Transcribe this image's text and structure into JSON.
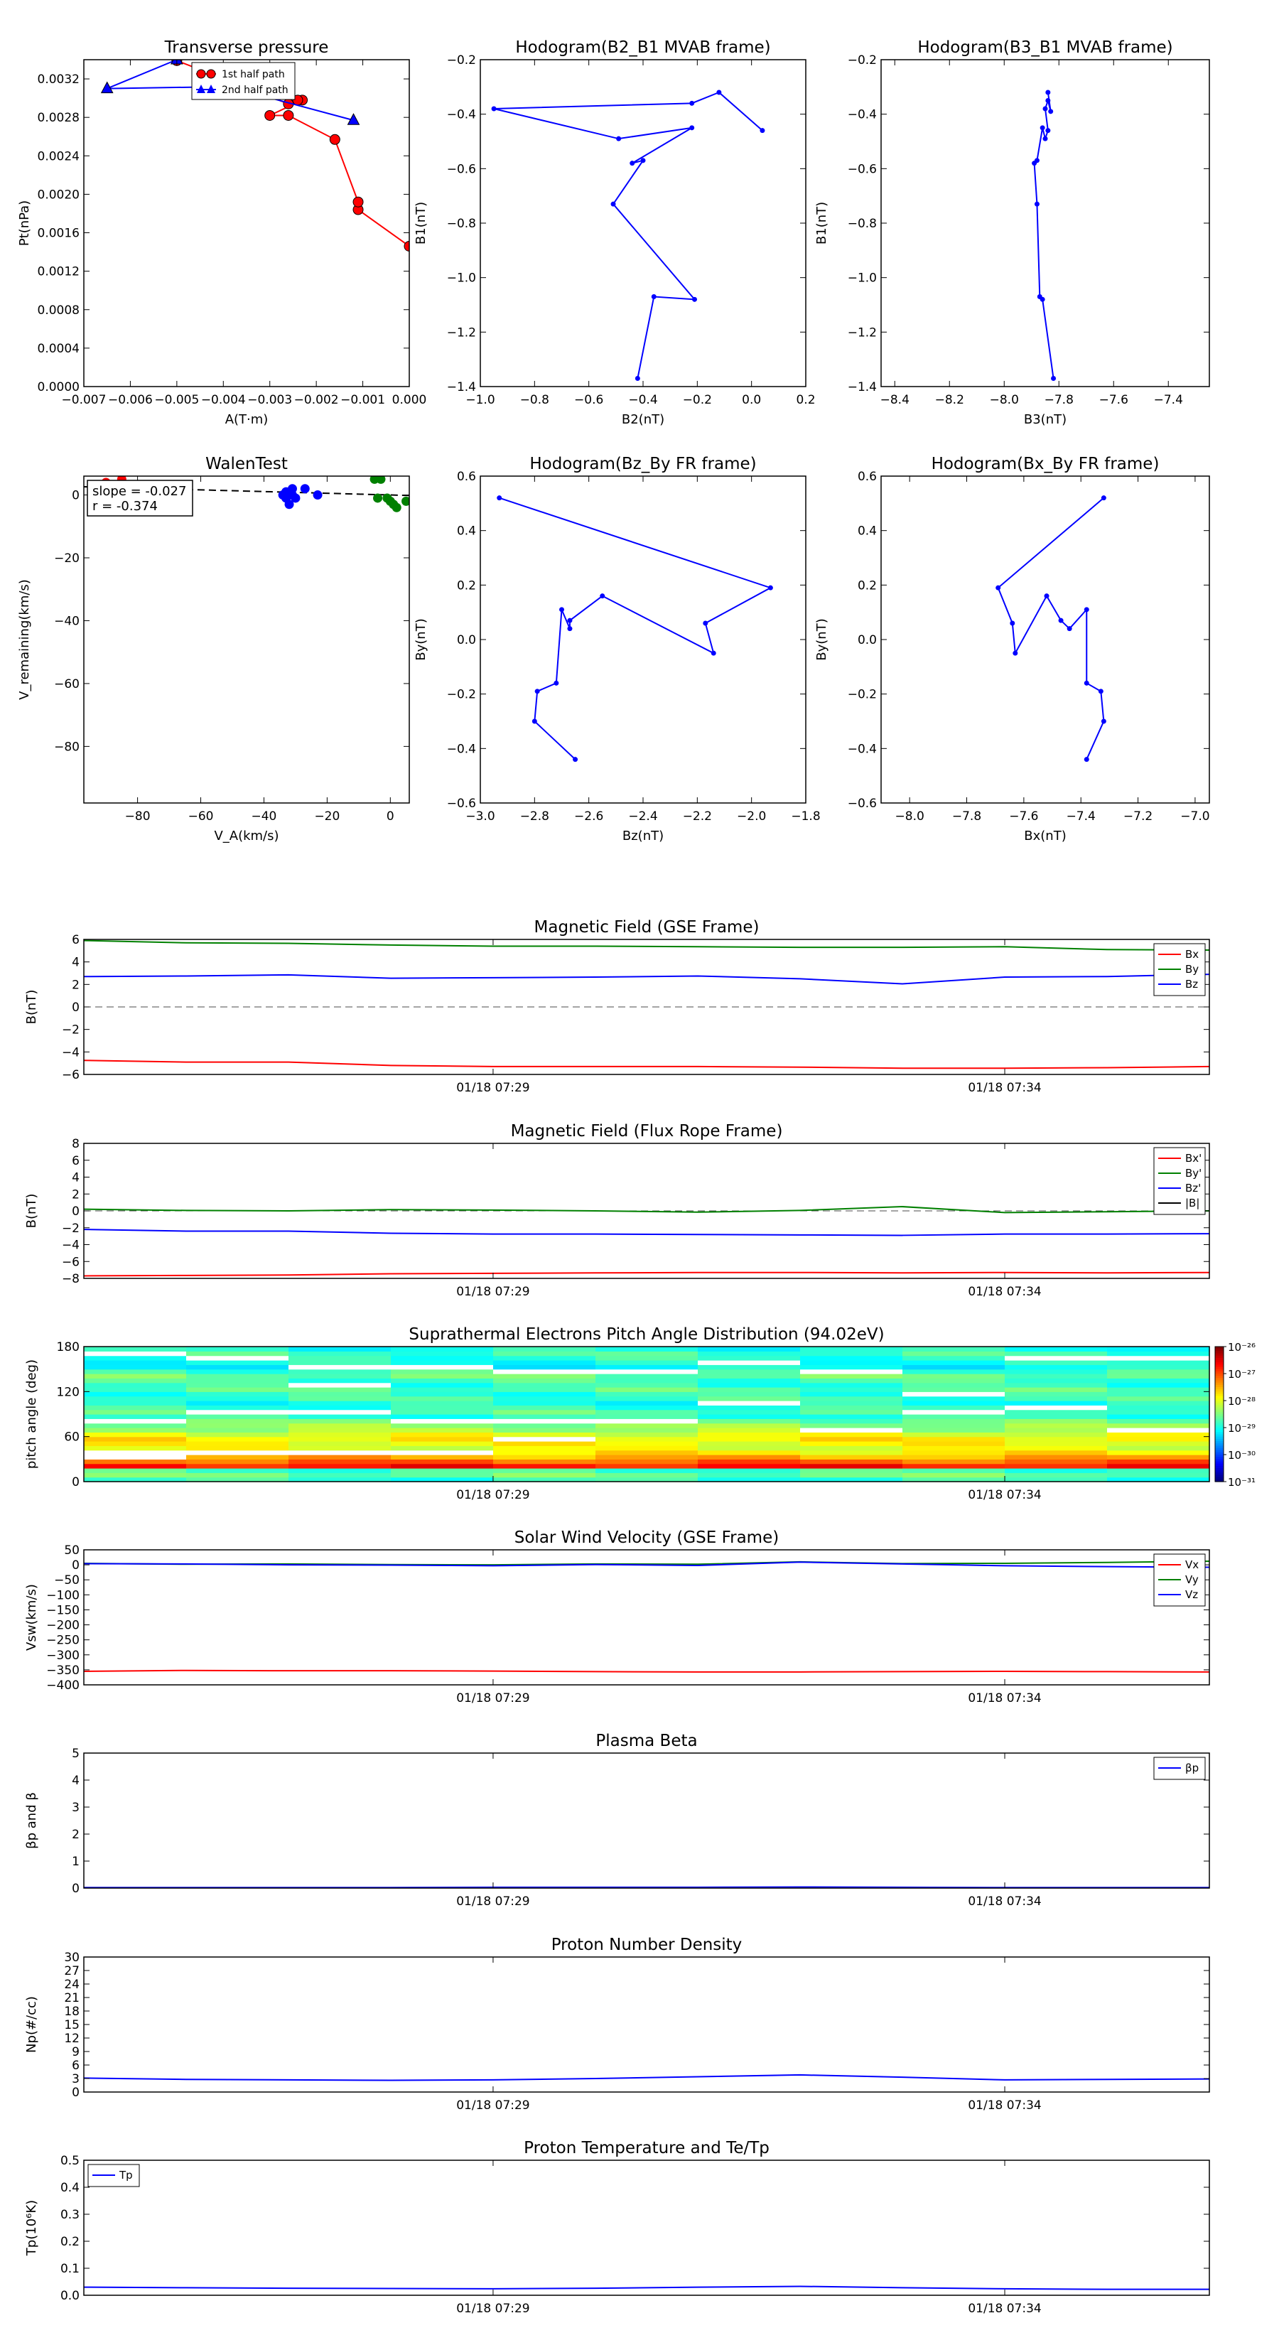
{
  "chart_data": [
    {
      "id": "tp",
      "type": "scatter",
      "title": "Transverse pressure",
      "xlabel": "A(T·m)",
      "ylabel": "Pt(nPa)",
      "xlim": [
        -0.007,
        0.0
      ],
      "ylim": [
        0.0,
        0.0034
      ],
      "xticks": [
        "−0.007",
        "−0.006",
        "−0.005",
        "−0.004",
        "−0.003",
        "−0.002",
        "−0.001",
        "0.000"
      ],
      "yticks": [
        "0.0000",
        "0.0004",
        "0.0008",
        "0.0012",
        "0.0016",
        "0.0020",
        "0.0024",
        "0.0028",
        "0.0032"
      ],
      "legend": "top-center",
      "series": [
        {
          "name": "1st half path",
          "color": "#ff0000",
          "marker": "circle",
          "x": [
            0.0,
            -0.0011,
            -0.0011,
            -0.0016,
            -0.0026,
            -0.003,
            -0.0023,
            -0.0024,
            -0.0026,
            -0.005
          ],
          "y": [
            0.00146,
            0.00184,
            0.00192,
            0.00257,
            0.00282,
            0.00282,
            0.00298,
            0.00298,
            0.00294,
            0.00339
          ]
        },
        {
          "name": "2nd half path",
          "color": "#0000ff",
          "marker": "triangle",
          "x": [
            -0.0012,
            -0.0039,
            -0.0065,
            -0.005
          ],
          "y": [
            0.00277,
            0.00312,
            0.0031,
            0.0034
          ]
        }
      ]
    },
    {
      "id": "h21",
      "type": "line",
      "title": "Hodogram(B2_B1 MVAB frame)",
      "xlabel": "B2(nT)",
      "ylabel": "B1(nT)",
      "xlim": [
        -1.0,
        0.2
      ],
      "ylim": [
        -1.4,
        -0.2
      ],
      "xticks": [
        "−1.0",
        "−0.8",
        "−0.6",
        "−0.4",
        "−0.2",
        "0.0",
        "0.2"
      ],
      "yticks": [
        "−1.4",
        "−1.2",
        "−1.0",
        "−0.8",
        "−0.6",
        "−0.4",
        "−0.2"
      ],
      "series": [
        {
          "color": "#0000ff",
          "x": [
            -0.42,
            -0.36,
            -0.21,
            -0.51,
            -0.4,
            -0.44,
            -0.22,
            -0.49,
            -0.95,
            -0.22,
            -0.12,
            0.04
          ],
          "y": [
            -1.37,
            -1.07,
            -1.08,
            -0.73,
            -0.57,
            -0.58,
            -0.45,
            -0.49,
            -0.38,
            -0.36,
            -0.32,
            -0.46
          ]
        }
      ]
    },
    {
      "id": "h31",
      "type": "line",
      "title": "Hodogram(B3_B1 MVAB frame)",
      "xlabel": "B3(nT)",
      "ylabel": "B1(nT)",
      "xlim": [
        -8.45,
        -7.25
      ],
      "ylim": [
        -1.4,
        -0.2
      ],
      "xticks": [
        "−8.4",
        "−8.2",
        "−8.0",
        "−7.8",
        "−7.6",
        "−7.4"
      ],
      "xtick_values": [
        -8.4,
        -8.2,
        -8.0,
        -7.8,
        -7.6,
        -7.4
      ],
      "yticks": [
        "−1.4",
        "−1.2",
        "−1.0",
        "−0.8",
        "−0.6",
        "−0.4",
        "−0.2"
      ],
      "series": [
        {
          "color": "#0000ff",
          "x": [
            -7.82,
            -7.86,
            -7.87,
            -7.88,
            -7.89,
            -7.88,
            -7.86,
            -7.85,
            -7.84,
            -7.85,
            -7.84,
            -7.83,
            -7.84
          ],
          "y": [
            -1.37,
            -1.08,
            -1.07,
            -0.73,
            -0.58,
            -0.57,
            -0.45,
            -0.49,
            -0.46,
            -0.38,
            -0.35,
            -0.39,
            -0.32
          ]
        }
      ]
    },
    {
      "id": "walen",
      "type": "scatter",
      "title": "WalenTest",
      "xlabel": "V_A(km/s)",
      "ylabel": "V_remaining(km/s)",
      "xlim": [
        -97,
        6
      ],
      "ylim": [
        -98,
        6
      ],
      "xticks": [
        "−80",
        "−60",
        "−40",
        "−20",
        "0"
      ],
      "xtick_values": [
        -80,
        -60,
        -40,
        -20,
        0
      ],
      "yticks": [
        "−80",
        "−60",
        "−40",
        "−20",
        "0"
      ],
      "ytick_values": [
        -80,
        -60,
        -40,
        -20,
        0
      ],
      "annotation": [
        "slope = -0.027",
        "r = -0.374"
      ],
      "fit_line": {
        "slope": -0.027,
        "intercept": 0.0
      },
      "series": [
        {
          "color": "#ff0000",
          "x": [
            -90,
            -85
          ],
          "y": [
            4,
            5
          ]
        },
        {
          "color": "#0000ff",
          "x": [
            -34,
            -33,
            -32,
            -31,
            -30,
            -32,
            -31,
            -27,
            -23,
            -33
          ],
          "y": [
            0,
            1,
            0,
            2,
            -1,
            -3,
            0,
            2,
            0,
            -1
          ]
        },
        {
          "color": "#008000",
          "x": [
            -5,
            -3,
            -1,
            0,
            1,
            2,
            5,
            -4
          ],
          "y": [
            5,
            5,
            -1,
            -2,
            -3,
            -4,
            -2,
            -1
          ]
        }
      ]
    },
    {
      "id": "hzy",
      "type": "line",
      "title": "Hodogram(Bz_By FR frame)",
      "xlabel": "Bz(nT)",
      "ylabel": "By(nT)",
      "xlim": [
        -3.0,
        -1.8
      ],
      "ylim": [
        -0.6,
        0.6
      ],
      "xticks": [
        "−3.0",
        "−2.8",
        "−2.6",
        "−2.4",
        "−2.2",
        "−2.0",
        "−1.8"
      ],
      "yticks": [
        "−0.6",
        "−0.4",
        "−0.2",
        "0.0",
        "0.2",
        "0.4",
        "0.6"
      ],
      "series": [
        {
          "color": "#0000ff",
          "x": [
            -2.65,
            -2.8,
            -2.79,
            -2.72,
            -2.7,
            -2.67,
            -2.67,
            -2.55,
            -2.14,
            -2.17,
            -1.93,
            -2.93
          ],
          "y": [
            -0.44,
            -0.3,
            -0.19,
            -0.16,
            0.11,
            0.04,
            0.07,
            0.16,
            -0.05,
            0.06,
            0.19,
            0.52
          ]
        }
      ]
    },
    {
      "id": "hxy",
      "type": "line",
      "title": "Hodogram(Bx_By FR frame)",
      "xlabel": "Bx(nT)",
      "ylabel": "By(nT)",
      "xlim": [
        -8.1,
        -6.95
      ],
      "ylim": [
        -0.6,
        0.6
      ],
      "xticks": [
        "−8.0",
        "−7.8",
        "−7.6",
        "−7.4",
        "−7.2",
        "−7.0"
      ],
      "xtick_values": [
        -8.0,
        -7.8,
        -7.6,
        -7.4,
        -7.2,
        -7.0
      ],
      "yticks": [
        "−0.6",
        "−0.4",
        "−0.2",
        "0.0",
        "0.2",
        "0.4",
        "0.6"
      ],
      "series": [
        {
          "color": "#0000ff",
          "x": [
            -7.38,
            -7.32,
            -7.33,
            -7.38,
            -7.38,
            -7.44,
            -7.47,
            -7.52,
            -7.63,
            -7.64,
            -7.69,
            -7.32
          ],
          "y": [
            -0.44,
            -0.3,
            -0.19,
            -0.16,
            0.11,
            0.04,
            0.07,
            0.16,
            -0.05,
            0.06,
            0.19,
            0.52
          ]
        }
      ]
    },
    {
      "id": "mag_gse",
      "type": "line",
      "title": "Magnetic Field (GSE Frame)",
      "ylabel": "B(nT)",
      "ylim": [
        -6,
        6
      ],
      "yticks": [
        "−6",
        "−4",
        "−2",
        "0",
        "2",
        "4",
        "6"
      ],
      "ytick_values": [
        -6,
        -4,
        -2,
        0,
        2,
        4,
        6
      ],
      "xticks": [
        "01/18 07:29",
        "01/18 07:34"
      ],
      "xtick_pos": [
        0.3636,
        0.8182
      ],
      "zero_line": true,
      "legend": "top-right",
      "series": [
        {
          "name": "Bx",
          "color": "#ff0000",
          "values": [
            -4.75,
            -4.9,
            -4.9,
            -5.2,
            -5.3,
            -5.3,
            -5.3,
            -5.35,
            -5.45,
            -5.45,
            -5.4,
            -5.3
          ]
        },
        {
          "name": "By",
          "color": "#008000",
          "values": [
            5.9,
            5.7,
            5.65,
            5.5,
            5.4,
            5.4,
            5.35,
            5.3,
            5.3,
            5.35,
            5.1,
            5.05
          ]
        },
        {
          "name": "Bz",
          "color": "#0000ff",
          "values": [
            2.7,
            2.75,
            2.85,
            2.55,
            2.6,
            2.65,
            2.75,
            2.5,
            2.05,
            2.65,
            2.7,
            2.9
          ]
        }
      ]
    },
    {
      "id": "mag_fr",
      "type": "line",
      "title": "Magnetic Field (Flux Rope Frame)",
      "ylabel": "B(nT)",
      "ylim": [
        -8,
        8
      ],
      "yticks": [
        "−8",
        "−6",
        "−4",
        "−2",
        "0",
        "2",
        "4",
        "6",
        "8"
      ],
      "ytick_values": [
        -8,
        -6,
        -4,
        -2,
        0,
        2,
        4,
        6,
        8
      ],
      "xticks": [
        "01/18 07:29",
        "01/18 07:34"
      ],
      "xtick_pos": [
        0.3636,
        0.8182
      ],
      "zero_line": true,
      "legend": "top-right",
      "series": [
        {
          "name": "Bx'",
          "color": "#ff0000",
          "values": [
            -7.7,
            -7.65,
            -7.6,
            -7.45,
            -7.4,
            -7.35,
            -7.3,
            -7.3,
            -7.35,
            -7.3,
            -7.35,
            -7.3
          ]
        },
        {
          "name": "By'",
          "color": "#008000",
          "values": [
            0.2,
            0.05,
            0.0,
            0.15,
            0.1,
            0.0,
            -0.15,
            0.05,
            0.5,
            -0.2,
            -0.1,
            0.0
          ]
        },
        {
          "name": "Bz'",
          "color": "#0000ff",
          "values": [
            -2.2,
            -2.4,
            -2.4,
            -2.65,
            -2.75,
            -2.75,
            -2.8,
            -2.85,
            -2.9,
            -2.75,
            -2.75,
            -2.7
          ]
        },
        {
          "name": "|B|",
          "color": "#000000",
          "values": []
        }
      ]
    },
    {
      "id": "pad",
      "type": "heatmap",
      "title": "Suprathermal Electrons Pitch Angle Distribution (94.02eV)",
      "ylabel": "pitch angle (deg)",
      "ylim": [
        0,
        180
      ],
      "yticks": [
        "0",
        "60",
        "120",
        "180"
      ],
      "ytick_values": [
        0,
        60,
        120,
        180
      ],
      "xticks": [
        "01/18 07:29",
        "01/18 07:34"
      ],
      "xtick_pos": [
        0.3636,
        0.8182
      ],
      "colorbar_ticks": [
        "10⁻²⁶",
        "10⁻²⁷",
        "10⁻²⁸",
        "10⁻²⁹",
        "10⁻³⁰",
        "10⁻³¹"
      ],
      "colorbar_range": [
        -31,
        -26
      ],
      "columns": 11,
      "rows": 30,
      "row_profile": [
        -28.9,
        -28.6,
        -28.8,
        -26.7,
        -27.1,
        -27.5,
        -27.8,
        -28.0,
        -27.9,
        -27.8,
        -28.0,
        -28.3,
        -28.4,
        -28.6,
        -28.9,
        -28.7,
        -28.9,
        -29.0,
        -28.8,
        -28.9,
        -28.7,
        -28.9,
        -28.8,
        -28.6,
        -28.8,
        -29.1,
        -29.0,
        -28.9,
        -28.8,
        -29.0
      ],
      "white_rows": [
        [
          0,
          5
        ],
        [
          0,
          6
        ],
        [
          1,
          6
        ],
        [
          2,
          6
        ],
        [
          3,
          6
        ],
        [
          0,
          13
        ],
        [
          1,
          15
        ],
        [
          2,
          15
        ],
        [
          3,
          13
        ],
        [
          4,
          13
        ],
        [
          5,
          13
        ],
        [
          6,
          17
        ],
        [
          7,
          11
        ],
        [
          8,
          15
        ],
        [
          9,
          16
        ],
        [
          10,
          11
        ],
        [
          2,
          25
        ],
        [
          3,
          25
        ],
        [
          4,
          24
        ],
        [
          5,
          24
        ],
        [
          6,
          26
        ],
        [
          7,
          24
        ],
        [
          9,
          27
        ],
        [
          0,
          28
        ],
        [
          1,
          27
        ],
        [
          10,
          27
        ],
        [
          2,
          21
        ],
        [
          8,
          19
        ],
        [
          4,
          9
        ]
      ]
    },
    {
      "id": "vsw",
      "type": "line",
      "title": "Solar Wind Velocity (GSE Frame)",
      "ylabel": "Vsw(km/s)",
      "ylim": [
        -400,
        50
      ],
      "yticks": [
        "−400",
        "−350",
        "−300",
        "−250",
        "−200",
        "−150",
        "−100",
        "−50",
        "0",
        "50"
      ],
      "ytick_values": [
        -400,
        -350,
        -300,
        -250,
        -200,
        -150,
        -100,
        -50,
        0,
        50
      ],
      "xticks": [
        "01/18 07:29",
        "01/18 07:34"
      ],
      "xtick_pos": [
        0.3636,
        0.8182
      ],
      "legend": "top-right",
      "series": [
        {
          "name": "Vx",
          "color": "#ff0000",
          "values": [
            -355,
            -352,
            -353,
            -353,
            -354,
            -356,
            -357,
            -357,
            -356,
            -355,
            -356,
            -357
          ]
        },
        {
          "name": "Vy",
          "color": "#008000",
          "values": [
            5,
            2,
            3,
            1,
            0,
            3,
            2,
            10,
            4,
            5,
            8,
            12
          ]
        },
        {
          "name": "Vz",
          "color": "#0000ff",
          "values": [
            4,
            3,
            0,
            -1,
            -3,
            1,
            -2,
            9,
            3,
            -3,
            -6,
            -8
          ]
        }
      ]
    },
    {
      "id": "beta",
      "type": "line",
      "title": "Plasma Beta",
      "ylabel": "βp and β",
      "ylim": [
        0,
        5
      ],
      "yticks": [
        "0",
        "1",
        "2",
        "3",
        "4",
        "5"
      ],
      "ytick_values": [
        0,
        1,
        2,
        3,
        4,
        5
      ],
      "xticks": [
        "01/18 07:29",
        "01/18 07:34"
      ],
      "xtick_pos": [
        0.3636,
        0.8182
      ],
      "legend": "top-right",
      "series": [
        {
          "name": "βp",
          "color": "#0000ff",
          "values": [
            0.02,
            0.02,
            0.02,
            0.02,
            0.03,
            0.03,
            0.03,
            0.04,
            0.03,
            0.02,
            0.02,
            0.02
          ]
        }
      ]
    },
    {
      "id": "np",
      "type": "line",
      "title": "Proton Number Density",
      "ylabel": "Np(#/cc)",
      "ylim": [
        0,
        30
      ],
      "yticks": [
        "0",
        "3",
        "6",
        "9",
        "12",
        "15",
        "18",
        "21",
        "24",
        "27",
        "30"
      ],
      "ytick_values": [
        0,
        3,
        6,
        9,
        12,
        15,
        18,
        21,
        24,
        27,
        30
      ],
      "xticks": [
        "01/18 07:29",
        "01/18 07:34"
      ],
      "xtick_pos": [
        0.3636,
        0.8182
      ],
      "series": [
        {
          "color": "#0000ff",
          "values": [
            3.1,
            2.8,
            2.7,
            2.6,
            2.7,
            3.0,
            3.4,
            3.8,
            3.3,
            2.7,
            2.8,
            2.9
          ]
        }
      ]
    },
    {
      "id": "tp_temp",
      "type": "line",
      "title": "Proton Temperature and Te/Tp",
      "ylabel": "Tp(10⁶K)",
      "ylim": [
        0,
        0.5
      ],
      "yticks": [
        "0.0",
        "0.1",
        "0.2",
        "0.3",
        "0.4",
        "0.5"
      ],
      "ytick_values": [
        0,
        0.1,
        0.2,
        0.3,
        0.4,
        0.5
      ],
      "xticks": [
        "01/18 07:29",
        "01/18 07:34"
      ],
      "xtick_pos": [
        0.3636,
        0.8182
      ],
      "legend": "top-left",
      "series": [
        {
          "name": "Tp",
          "color": "#0000ff",
          "values": [
            0.03,
            0.028,
            0.026,
            0.025,
            0.024,
            0.026,
            0.03,
            0.033,
            0.028,
            0.024,
            0.022,
            0.022
          ]
        }
      ]
    }
  ]
}
